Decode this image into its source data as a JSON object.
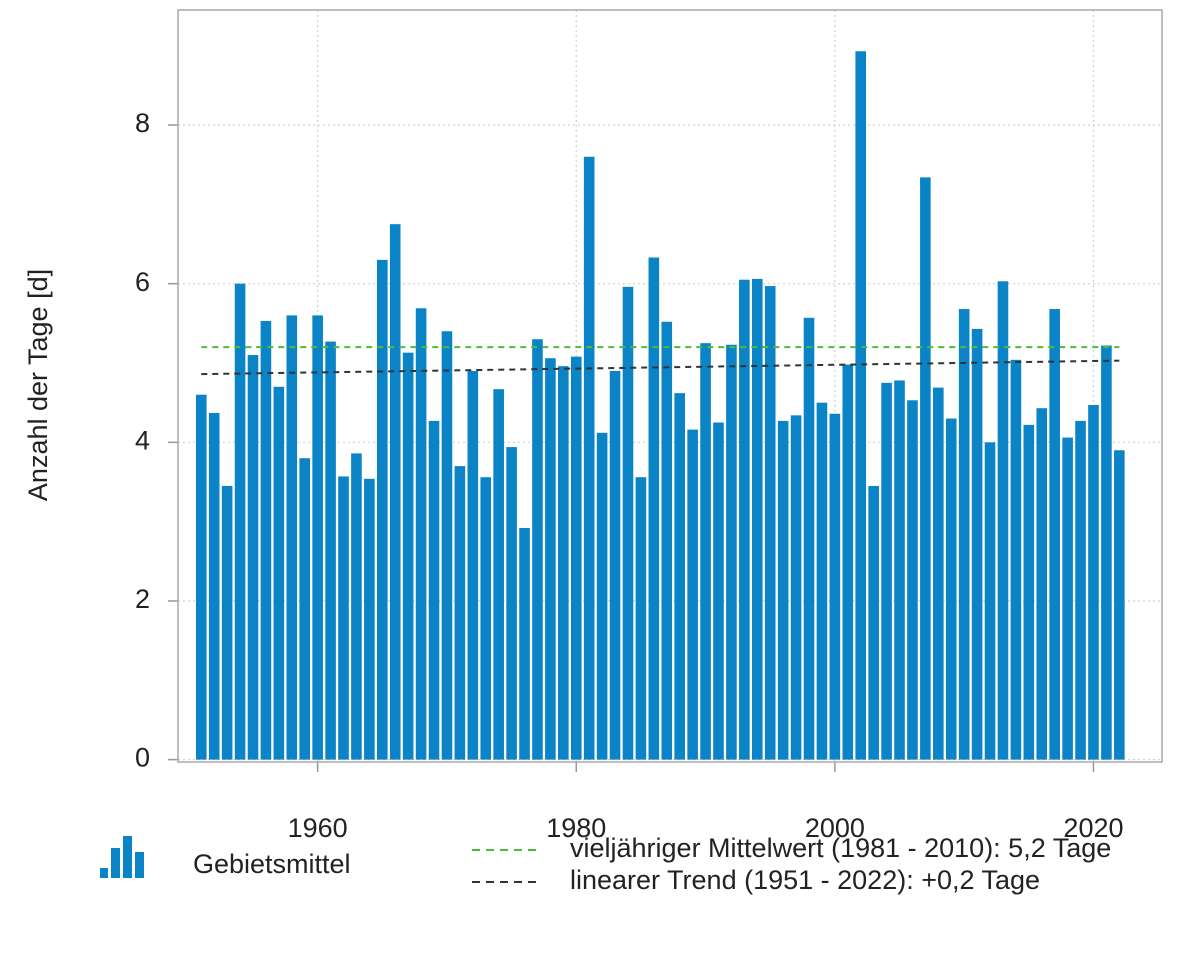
{
  "chart_data": {
    "type": "bar",
    "ylabel": "Anzahl der Tage [d]",
    "x": [
      1951,
      1952,
      1953,
      1954,
      1955,
      1956,
      1957,
      1958,
      1959,
      1960,
      1961,
      1962,
      1963,
      1964,
      1965,
      1966,
      1967,
      1968,
      1969,
      1970,
      1971,
      1972,
      1973,
      1974,
      1975,
      1976,
      1977,
      1978,
      1979,
      1980,
      1981,
      1982,
      1983,
      1984,
      1985,
      1986,
      1987,
      1988,
      1989,
      1990,
      1991,
      1992,
      1993,
      1994,
      1995,
      1996,
      1997,
      1998,
      1999,
      2000,
      2001,
      2002,
      2003,
      2004,
      2005,
      2006,
      2007,
      2008,
      2009,
      2010,
      2011,
      2012,
      2013,
      2014,
      2015,
      2016,
      2017,
      2018,
      2019,
      2020,
      2021,
      2022
    ],
    "series": [
      {
        "name": "Gebietsmittel",
        "color": "#0a84c6",
        "values": [
          4.6,
          4.37,
          3.45,
          6.0,
          5.1,
          5.53,
          4.7,
          5.6,
          3.8,
          5.6,
          5.27,
          3.57,
          3.86,
          3.54,
          6.3,
          6.75,
          5.13,
          5.69,
          4.27,
          5.4,
          3.7,
          4.9,
          3.56,
          4.67,
          3.94,
          2.92,
          5.3,
          5.06,
          4.96,
          5.08,
          7.6,
          4.12,
          4.9,
          5.96,
          3.56,
          6.33,
          5.52,
          4.62,
          4.16,
          5.25,
          4.25,
          5.23,
          6.05,
          6.06,
          5.97,
          4.27,
          4.34,
          5.57,
          4.5,
          4.36,
          4.98,
          8.93,
          3.45,
          4.75,
          4.78,
          4.53,
          7.34,
          4.69,
          4.3,
          5.68,
          5.43,
          4.0,
          6.03,
          5.04,
          4.22,
          4.43,
          5.68,
          4.06,
          4.27,
          4.47,
          5.22,
          3.9
        ]
      }
    ],
    "lines": [
      {
        "name": "vieljähriger Mittelwert (1981 - 2010): 5,2 Tage",
        "color": "#4cbb3a",
        "x": [
          1951,
          2022
        ],
        "values": [
          5.2,
          5.2
        ]
      },
      {
        "name": "linearer Trend (1951 - 2022): +0,2 Tage",
        "color": "#333333",
        "x": [
          1951,
          2022
        ],
        "values": [
          4.86,
          5.03
        ]
      }
    ],
    "xlim": [
      1949.2,
      2025.3
    ],
    "ylim": [
      -0.03,
      9.45
    ],
    "xticks": [
      1960,
      1980,
      2000,
      2020
    ],
    "yticks": [
      0,
      2,
      4,
      6,
      8
    ],
    "grid": true
  }
}
